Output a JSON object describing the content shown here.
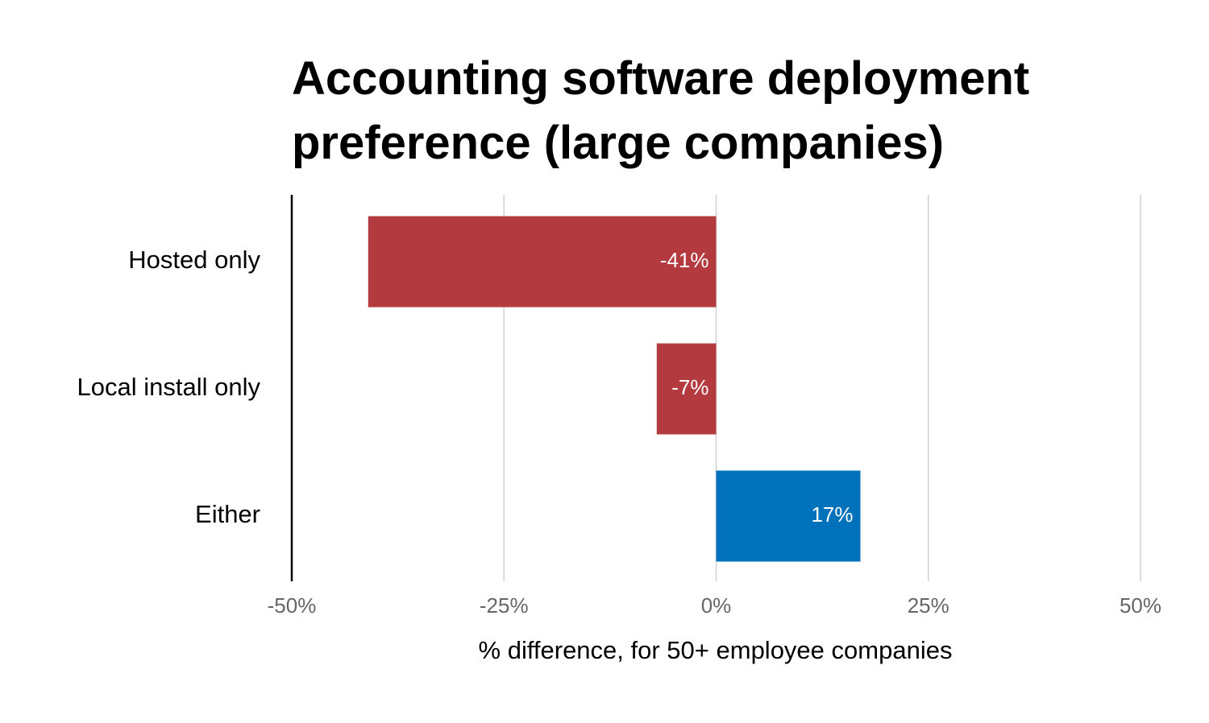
{
  "chart_data": {
    "type": "bar",
    "orientation": "horizontal",
    "title": "Accounting software deployment preference (large companies)",
    "xlabel": "% difference, for 50+ employee companies",
    "categories": [
      "Hosted only",
      "Local install only",
      "Either"
    ],
    "values": [
      -41,
      -7,
      17
    ],
    "value_labels": [
      "-41%",
      "-7%",
      "17%"
    ],
    "colors": [
      "#b33b3f",
      "#b33b3f",
      "#0072bb"
    ],
    "xlim": [
      -50,
      50
    ],
    "xticks": [
      {
        "value": -50,
        "label": "-50%"
      },
      {
        "value": -25,
        "label": "-25%"
      },
      {
        "value": 0,
        "label": "0%"
      },
      {
        "value": 25,
        "label": "25%"
      },
      {
        "value": 50,
        "label": "50%"
      }
    ],
    "grid": true
  }
}
